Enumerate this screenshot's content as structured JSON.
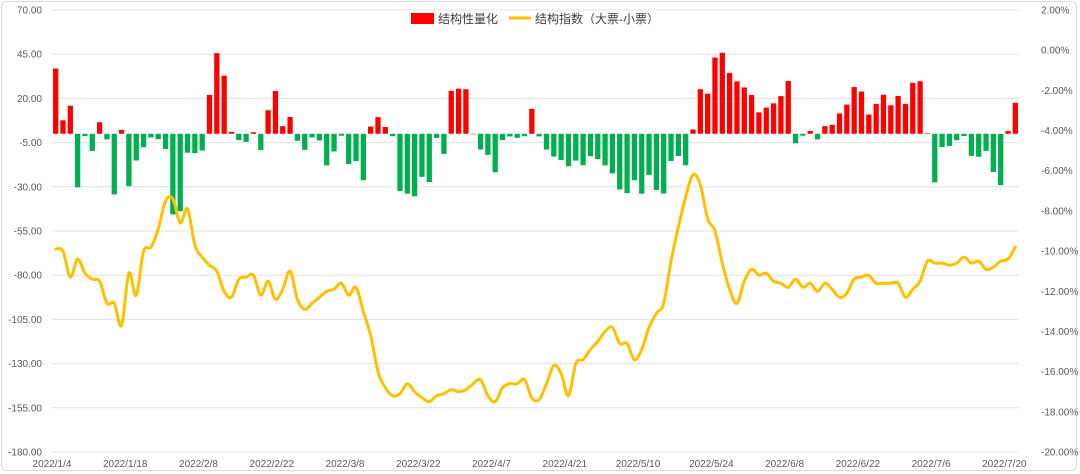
{
  "chart_data": {
    "type": "bar+line",
    "legend": [
      {
        "name": "结构性量化",
        "color": "#ff0000",
        "kind": "bar"
      },
      {
        "name": "结构指数（大票-小票）",
        "color": "#ffc000",
        "kind": "line"
      }
    ],
    "left_axis": {
      "ylim": [
        -180,
        70
      ],
      "ticks": [
        "70.00",
        "45.00",
        "20.00",
        "-5.00",
        "-30.00",
        "-55.00",
        "-80.00",
        "-105.00",
        "-130.00",
        "-155.00",
        "-180.00"
      ],
      "tick_values": [
        70,
        45,
        20,
        -5,
        -30,
        -55,
        -80,
        -105,
        -130,
        -155,
        -180
      ]
    },
    "right_axis": {
      "ylim": [
        -20,
        2
      ],
      "ticks": [
        "2.00%",
        "0.00%",
        "-2.00%",
        "-4.00%",
        "-6.00%",
        "-8.00%",
        "-10.00%",
        "-12.00%",
        "-14.00%",
        "-16.00%",
        "-18.00%",
        "-20.00%"
      ],
      "tick_values": [
        2,
        0,
        -2,
        -4,
        -6,
        -8,
        -10,
        -12,
        -14,
        -16,
        -18,
        -20
      ]
    },
    "x_ticks": [
      "2022/1/4",
      "2022/1/18",
      "2022/2/8",
      "2022/2/22",
      "2022/3/8",
      "2022/3/22",
      "2022/4/7",
      "2022/4/21",
      "2022/5/10",
      "2022/5/24",
      "2022/6/8",
      "2022/6/22",
      "2022/7/6",
      "2022/7/20"
    ],
    "x_tick_positions": [
      0,
      10,
      20,
      30,
      40,
      50,
      60,
      70,
      80,
      90,
      100,
      110,
      120,
      130
    ],
    "n_points": 132,
    "bar_colors": {
      "positive": "#ff0000",
      "negative": "#00b050"
    },
    "bars": [
      36.9,
      7.6,
      15.9,
      -30.3,
      -1.3,
      -9.7,
      6.5,
      -3.2,
      -34.3,
      2.2,
      -29.6,
      -15.1,
      -7.6,
      -2.1,
      -3.1,
      -8.6,
      -45.6,
      -43.8,
      -10.7,
      -11.0,
      -9.5,
      22.0,
      45.6,
      32.9,
      1.1,
      -3.6,
      -4.6,
      0.9,
      -9.2,
      13.3,
      24.2,
      4.3,
      9.5,
      -4.0,
      -9.1,
      -2.1,
      -3.8,
      -17.9,
      -10.0,
      -1.1,
      -17.1,
      -15.5,
      -26.3,
      4.1,
      9.4,
      3.8,
      -1.4,
      -32.4,
      -33.9,
      -35.4,
      -24.4,
      -27.3,
      -2.4,
      -11.4,
      24.3,
      25.5,
      25.2,
      -0.1,
      -8.9,
      -12.0,
      -21.8,
      -3.6,
      -1.5,
      -2.3,
      -1.4,
      14.1,
      -1.5,
      -8.9,
      -12.9,
      -14.9,
      -18.4,
      -15.2,
      -17.8,
      -12.7,
      -14.3,
      -17.9,
      -22.4,
      -31.5,
      -33.6,
      -26.3,
      -33.9,
      -23.3,
      -31.8,
      -33.8,
      -15.4,
      -12.6,
      -17.8,
      2.4,
      25.2,
      22.7,
      43.1,
      45.8,
      34.4,
      29.6,
      26.2,
      21.9,
      12.1,
      14.8,
      17.2,
      21.3,
      29.8,
      -5.4,
      -1.1,
      1.6,
      -3.2,
      4.3,
      5.1,
      11.5,
      16.5,
      26.4,
      23.9,
      10.9,
      16.9,
      22.1,
      16.1,
      21.4,
      16.9,
      28.8,
      29.7,
      0.3,
      -27.5,
      -7.5,
      -6.9,
      -3.6,
      -1.3,
      -12.5,
      -13.0,
      -9.7,
      -21.6,
      -29.1,
      1.5,
      17.5
    ],
    "line_values": [
      -9.9,
      -10.0,
      -11.3,
      -10.4,
      -11.1,
      -11.4,
      -11.5,
      -12.6,
      -12.6,
      -13.7,
      -11.1,
      -12.2,
      -10.0,
      -9.8,
      -8.9,
      -7.5,
      -7.4,
      -8.6,
      -7.9,
      -9.7,
      -10.3,
      -10.7,
      -11.0,
      -12.0,
      -12.3,
      -11.4,
      -11.3,
      -11.2,
      -12.2,
      -11.5,
      -12.4,
      -11.9,
      -11.0,
      -12.4,
      -12.9,
      -12.6,
      -12.3,
      -12.0,
      -11.9,
      -11.6,
      -12.2,
      -11.8,
      -13.0,
      -14.2,
      -16.0,
      -16.8,
      -17.2,
      -17.1,
      -16.6,
      -17.0,
      -17.3,
      -17.5,
      -17.2,
      -17.1,
      -16.9,
      -17.0,
      -16.9,
      -16.6,
      -16.4,
      -17.2,
      -17.5,
      -16.8,
      -16.6,
      -16.6,
      -16.4,
      -17.3,
      -17.4,
      -16.6,
      -15.7,
      -16.1,
      -17.2,
      -15.6,
      -15.4,
      -14.9,
      -14.5,
      -14.0,
      -13.8,
      -14.6,
      -14.6,
      -15.4,
      -14.9,
      -13.8,
      -13.1,
      -12.6,
      -10.5,
      -8.8,
      -7.3,
      -6.2,
      -6.7,
      -8.4,
      -9.0,
      -10.6,
      -11.9,
      -12.6,
      -11.5,
      -10.9,
      -11.2,
      -11.1,
      -11.5,
      -11.6,
      -11.8,
      -11.4,
      -11.8,
      -11.6,
      -12.0,
      -11.6,
      -11.9,
      -12.3,
      -12.1,
      -11.4,
      -11.3,
      -11.2,
      -11.6,
      -11.6,
      -11.6,
      -11.6,
      -12.3,
      -11.9,
      -11.5,
      -10.5,
      -10.6,
      -10.6,
      -10.7,
      -10.6,
      -10.3,
      -10.6,
      -10.5,
      -10.9,
      -10.8,
      -10.5,
      -10.4,
      -9.8
    ],
    "grid": true,
    "legend_position": "top"
  }
}
